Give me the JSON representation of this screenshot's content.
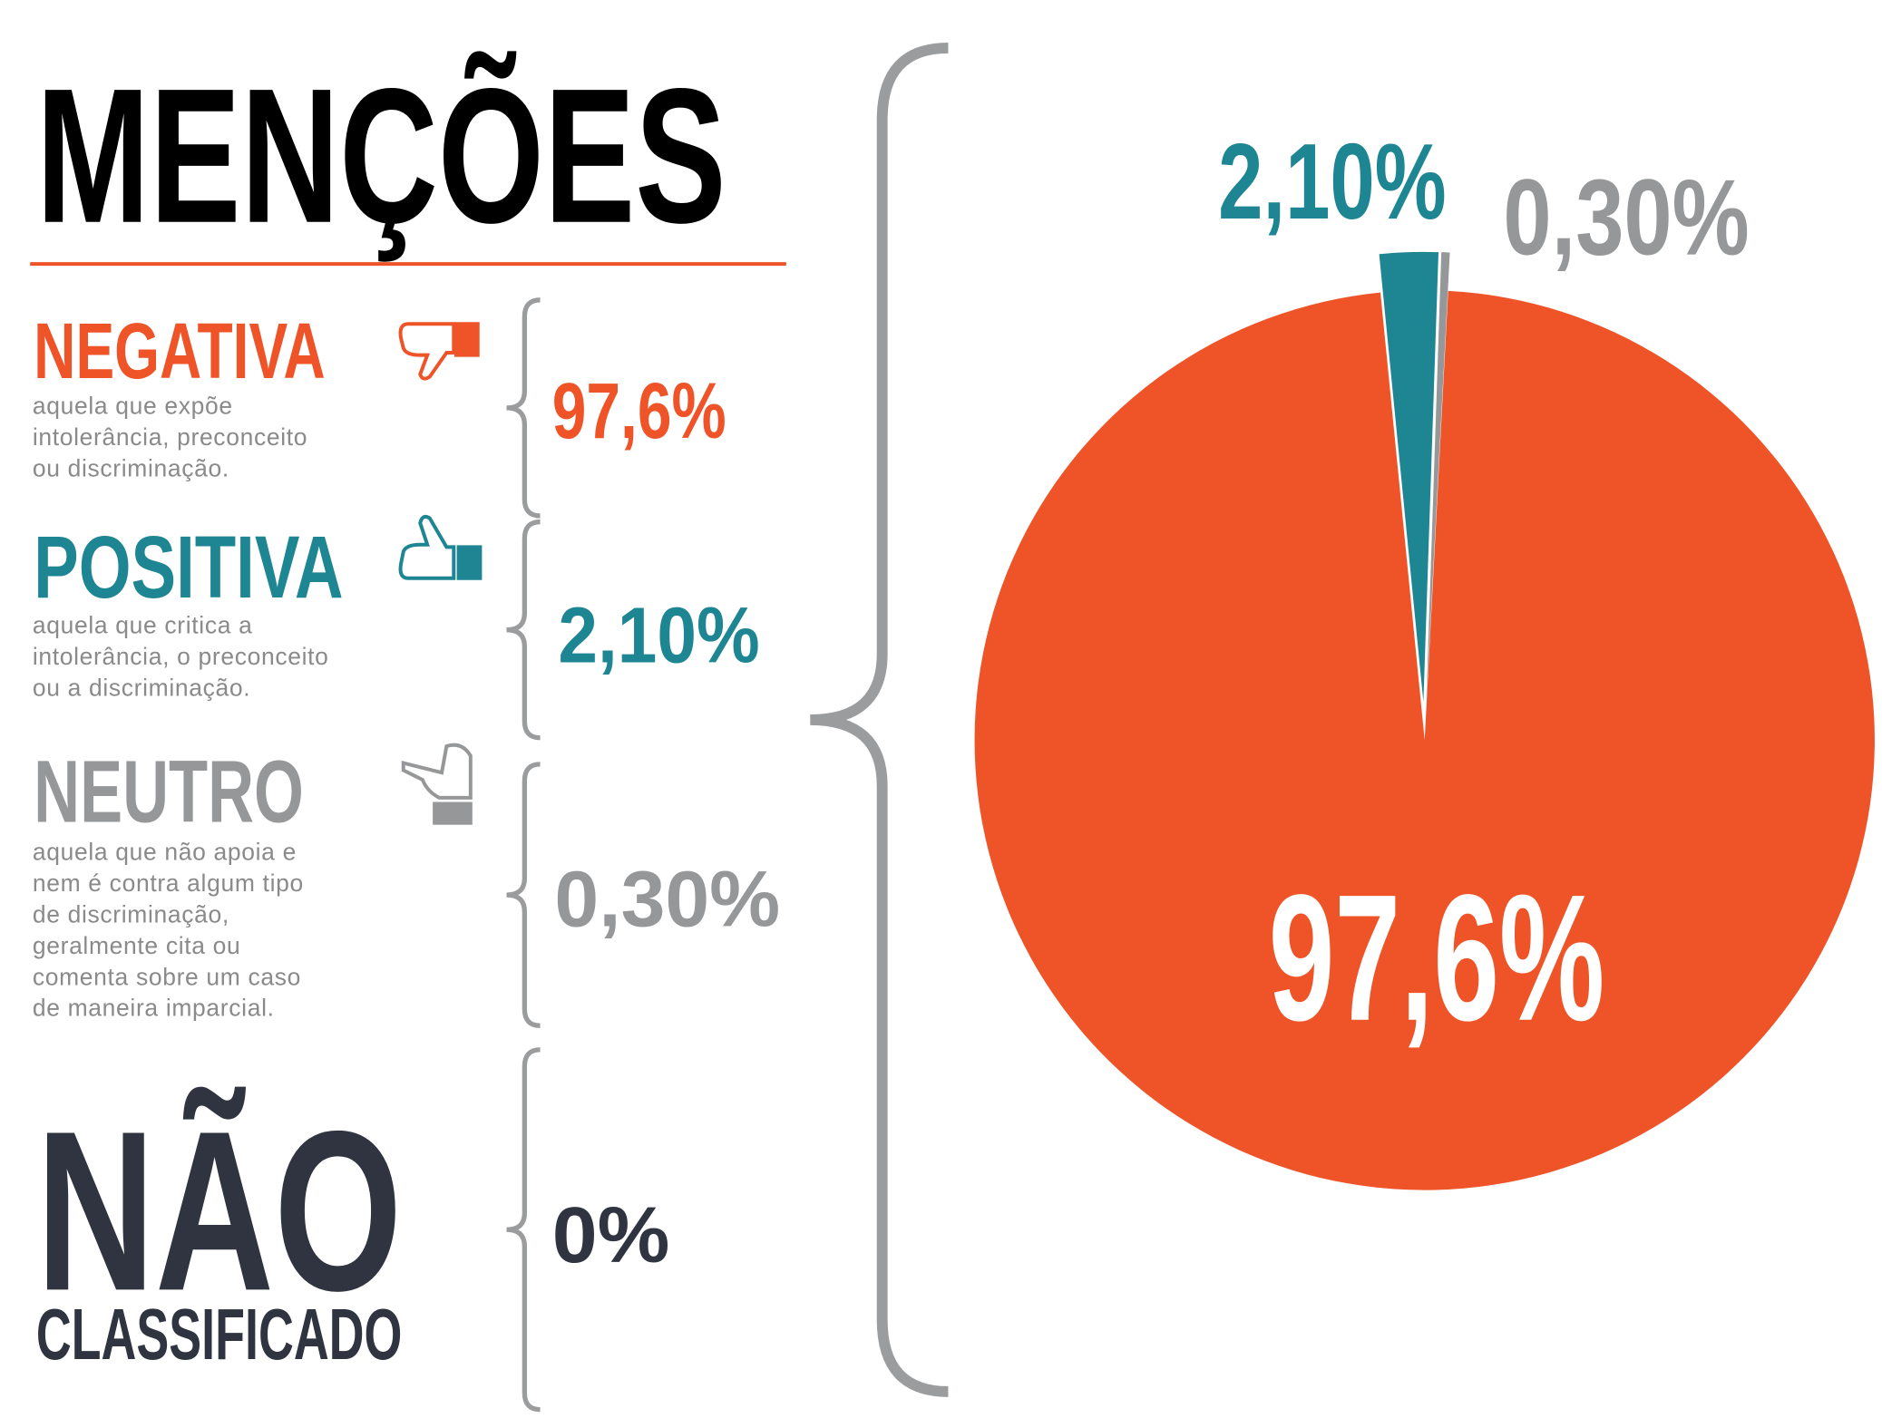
{
  "chart_data": {
    "type": "pie",
    "title": "MENÇÕES",
    "categories": [
      "NEGATIVA",
      "POSITIVA",
      "NEUTRO"
    ],
    "descriptions": [
      [
        "aquela que expõe",
        "intolerância, preconceito",
        "ou discriminação."
      ],
      [
        "aquela que critica a",
        "intolerância, o preconceito",
        "ou a discriminação."
      ],
      [
        "aquela que não apoia e",
        "nem é contra algum tipo",
        "de discriminação,",
        "geralmente cita ou",
        "comenta sobre um caso",
        "de maneira imparcial."
      ]
    ],
    "values": [
      97.6,
      2.1,
      0.3
    ],
    "value_labels": [
      "97,6%",
      "2,10%",
      "0,30%"
    ],
    "colors": [
      "#ee5428",
      "#1e8592",
      "#959799"
    ],
    "unclassified": {
      "title": "NÃO",
      "subtitle": "CLASSIFICADO",
      "value": 0,
      "value_label": "0%",
      "color": "#2f3440"
    }
  }
}
